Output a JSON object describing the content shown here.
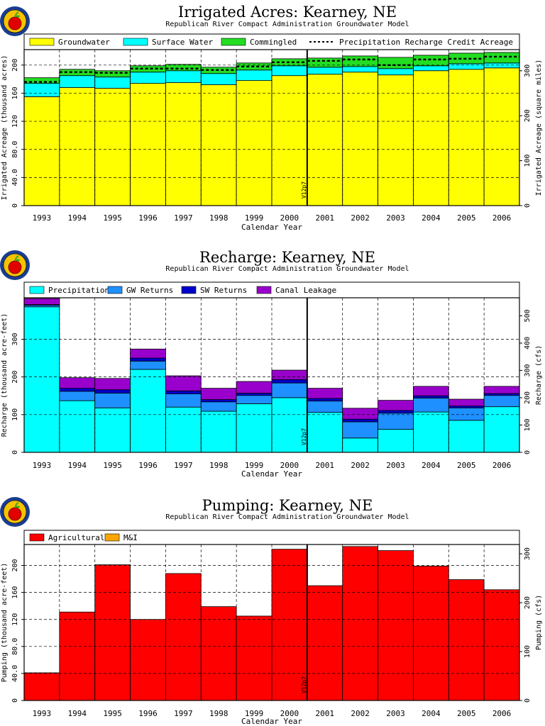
{
  "colors": {
    "groundwater": "#ffff00",
    "surface_water": "#00ffff",
    "commingled": "#22dd22",
    "precipitation": "#00ffff",
    "gw_returns": "#1e90ff",
    "sw_returns": "#0000cc",
    "canal_leakage": "#9900cc",
    "agricultural": "#ff0000",
    "mi": "#ffa500",
    "logo_ring": "#1a3d8f",
    "logo_fill": "#f5c400"
  },
  "icons": [
    "apple-logo-icon"
  ],
  "charts": [
    {
      "title": "Irrigated Acres: Kearney, NE",
      "subtitle": "Republican River Compact Administration Groundwater Model",
      "marker_label": "V12p7",
      "chart_data": {
        "type": "bar",
        "stacked": true,
        "categories": [
          "1993",
          "1994",
          "1995",
          "1996",
          "1997",
          "1998",
          "1999",
          "2000",
          "2001",
          "2002",
          "2003",
          "2004",
          "2005",
          "2006"
        ],
        "xlabel": "Calendar Year",
        "ylabel": "Irrigated Acreage (thousand acres)",
        "ylim": [
          0,
          222
        ],
        "yticks": [
          0,
          40,
          80,
          120,
          160,
          200
        ],
        "ytick_labels": [
          "0",
          "40.0",
          "80.0",
          "120",
          "160",
          "200"
        ],
        "y2label": "Irrigated Acreage (square miles)",
        "y2lim": [
          0,
          347
        ],
        "y2ticks": [
          0,
          100,
          200,
          300
        ],
        "grid": true,
        "legend_position": "top",
        "series": [
          {
            "name": "Groundwater",
            "color_key": "groundwater",
            "values": [
              155,
              168,
              167,
              174,
              175,
              172,
              178,
              185,
              187,
              190,
              186,
              192,
              194,
              196
            ]
          },
          {
            "name": "Surface Water",
            "color_key": "surface_water",
            "values": [
              19,
              17,
              16,
              16,
              17,
              16,
              15,
              14,
              10,
              8,
              9,
              7,
              8,
              7
            ]
          },
          {
            "name": "Commingled",
            "color_key": "commingled",
            "values": [
              8,
              9,
              9,
              9,
              9,
              9,
              10,
              10,
              13,
              15,
              16,
              15,
              15,
              15
            ]
          }
        ],
        "line_series": [
          {
            "name": "Precipitation Recharge Credit Acreage",
            "style": "dashed",
            "values": [
              176,
              190,
              189,
              195,
              195,
              193,
              198,
              204,
              206,
              208,
              200,
              208,
              209,
              212
            ]
          }
        ],
        "marker_x_after_category": "2000"
      }
    },
    {
      "title": "Recharge: Kearney, NE",
      "subtitle": "Republican River Compact Administration Groundwater Model",
      "marker_label": "V12p7",
      "chart_data": {
        "type": "bar",
        "stacked": true,
        "categories": [
          "1993",
          "1994",
          "1995",
          "1996",
          "1997",
          "1998",
          "1999",
          "2000",
          "2001",
          "2002",
          "2003",
          "2004",
          "2005",
          "2006"
        ],
        "xlabel": "Calendar Year",
        "ylabel": "Recharge (thousand acre-feet)",
        "ylim": [
          0,
          410
        ],
        "yticks": [
          0,
          100,
          200,
          300
        ],
        "ytick_labels": [
          "0",
          "100",
          "200",
          "300"
        ],
        "y2label": "Recharge (cfs)",
        "y2lim": [
          0,
          566
        ],
        "y2ticks": [
          0,
          100,
          200,
          300,
          400,
          500
        ],
        "grid": true,
        "legend_position": "top",
        "series": [
          {
            "name": "Precipitation",
            "color_key": "precipitation",
            "values": [
              386,
              137,
              118,
              220,
              120,
              109,
              129,
              145,
              106,
              38,
              61,
              107,
              85,
              121
            ]
          },
          {
            "name": "GW Returns",
            "color_key": "gw_returns",
            "values": [
              4,
              25,
              39,
              22,
              35,
              25,
              22,
              39,
              30,
              43,
              43,
              37,
              33,
              30
            ]
          },
          {
            "name": "SW Returns",
            "color_key": "sw_returns",
            "values": [
              2,
              8,
              9,
              8,
              8,
              6,
              6,
              9,
              7,
              7,
              7,
              6,
              5,
              5
            ]
          },
          {
            "name": "Canal Leakage",
            "color_key": "canal_leakage",
            "values": [
              16,
              28,
              30,
              24,
              40,
              30,
              31,
              25,
              27,
              29,
              27,
              25,
              18,
              19
            ]
          }
        ],
        "marker_x_after_category": "2000"
      }
    },
    {
      "title": "Pumping: Kearney, NE",
      "subtitle": "Republican River Compact Administration Groundwater Model",
      "marker_label": "V12p7",
      "chart_data": {
        "type": "bar",
        "stacked": true,
        "categories": [
          "1993",
          "1994",
          "1995",
          "1996",
          "1997",
          "1998",
          "1999",
          "2000",
          "2001",
          "2002",
          "2003",
          "2004",
          "2005",
          "2006"
        ],
        "xlabel": "Calendar Year",
        "ylabel": "Pumping (thousand acre-feet)",
        "ylim": [
          0,
          231
        ],
        "yticks": [
          0,
          40,
          80,
          120,
          160,
          200
        ],
        "ytick_labels": [
          "0",
          "40.0",
          "80.0",
          "120",
          "160",
          "200"
        ],
        "y2label": "Pumping (cfs)",
        "y2lim": [
          0,
          319
        ],
        "y2ticks": [
          0,
          100,
          200,
          300
        ],
        "grid": true,
        "legend_position": "top",
        "series": [
          {
            "name": "Agricultural",
            "color_key": "agricultural",
            "values": [
              41,
              131,
              201,
              120,
              188,
              139,
              125,
              224,
              170,
              228,
              222,
              199,
              179,
              164
            ]
          },
          {
            "name": "M&I",
            "color_key": "mi",
            "values": [
              0,
              0,
              0,
              0,
              0,
              0,
              0,
              0,
              0,
              0,
              0,
              0,
              0,
              0
            ]
          }
        ],
        "marker_x_after_category": "2000"
      }
    }
  ]
}
